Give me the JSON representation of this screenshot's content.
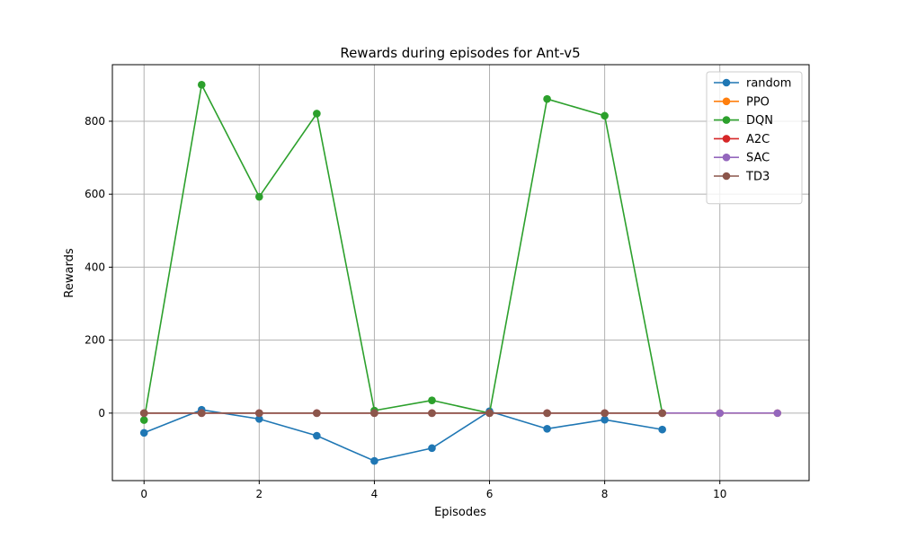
{
  "chart_data": {
    "type": "line",
    "title": "Rewards during episodes for Ant-v5",
    "xlabel": "Episodes",
    "ylabel": "Rewards",
    "xlim": [
      -0.55,
      11.55
    ],
    "ylim": [
      -185,
      955
    ],
    "xticks": [
      0,
      2,
      4,
      6,
      8,
      10
    ],
    "yticks": [
      0,
      200,
      400,
      600,
      800
    ],
    "grid": true,
    "legend_position": "top-right",
    "series": [
      {
        "name": "random",
        "color": "#1f77b4",
        "x": [
          0,
          1,
          2,
          3,
          4,
          5,
          6,
          7,
          8,
          9
        ],
        "y": [
          -54,
          9,
          -16,
          -62,
          -131,
          -96,
          5,
          -43,
          -18,
          -45
        ]
      },
      {
        "name": "PPO",
        "color": "#ff7f0e",
        "x": [
          0,
          1,
          2,
          3,
          4,
          5,
          6,
          7,
          8,
          9,
          10,
          11
        ],
        "y": [
          0,
          0,
          0,
          0,
          0,
          0,
          0,
          0,
          0,
          0,
          0,
          0
        ]
      },
      {
        "name": "DQN",
        "color": "#2ca02c",
        "x": [
          0,
          1,
          2,
          3,
          4,
          5,
          6,
          7,
          8,
          9
        ],
        "y": [
          -19,
          900,
          593,
          821,
          7,
          35,
          0,
          861,
          815,
          0
        ]
      },
      {
        "name": "A2C",
        "color": "#d62728",
        "x": [
          0,
          1,
          2,
          3,
          4,
          5,
          6,
          7,
          8,
          9
        ],
        "y": [
          0,
          0,
          0,
          0,
          0,
          0,
          0,
          0,
          0,
          0
        ]
      },
      {
        "name": "SAC",
        "color": "#9467bd",
        "x": [
          0,
          1,
          2,
          3,
          4,
          5,
          6,
          7,
          8,
          9,
          10,
          11
        ],
        "y": [
          0,
          0,
          0,
          0,
          0,
          0,
          0,
          0,
          0,
          0,
          0,
          0
        ]
      },
      {
        "name": "TD3",
        "color": "#8c564b",
        "x": [
          0,
          1,
          2,
          3,
          4,
          5,
          6,
          7,
          8,
          9
        ],
        "y": [
          0,
          0,
          0,
          0,
          0,
          0,
          0,
          0,
          0,
          0
        ]
      }
    ]
  }
}
